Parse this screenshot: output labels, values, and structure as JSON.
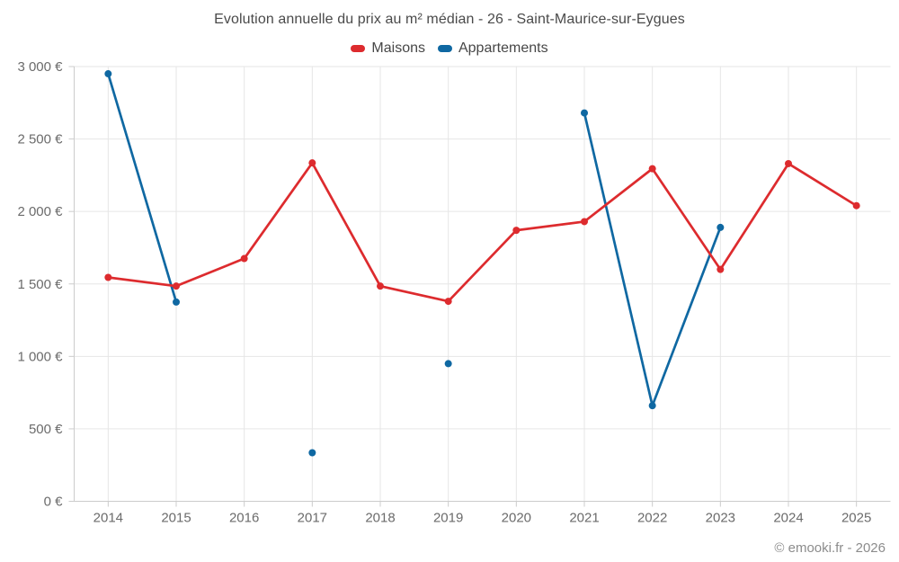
{
  "footer": {
    "text": "© emooki.fr - 2026"
  },
  "chart_data": {
    "type": "line",
    "title": "Evolution annuelle du prix au m² médian - 26 - Saint-Maurice-sur-Eygues",
    "categories": [
      "2014",
      "2015",
      "2016",
      "2017",
      "2018",
      "2019",
      "2020",
      "2021",
      "2022",
      "2023",
      "2024",
      "2025"
    ],
    "series": [
      {
        "name": "Appartements",
        "color": "#0f68a2",
        "values": [
          2950,
          1375,
          null,
          335,
          null,
          950,
          null,
          2680,
          660,
          1890,
          null,
          null
        ]
      },
      {
        "name": "Maisons",
        "color": "#dd2b2e",
        "values": [
          1545,
          1485,
          1675,
          2335,
          1485,
          1380,
          1870,
          1930,
          2295,
          1600,
          2330,
          2040
        ]
      }
    ],
    "legend_order": [
      "Maisons",
      "Appartements"
    ],
    "ylim": [
      0,
      3000
    ],
    "ytick_step": 500,
    "ytick_labels": [
      "0 €",
      "500 €",
      "1 000 €",
      "1 500 €",
      "2 000 €",
      "2 500 €",
      "3 000 €"
    ],
    "xlabel": "",
    "ylabel": "",
    "grid": true,
    "legend_position": "top",
    "currency": "€",
    "grid_color": "#e6e6e6",
    "axis_color": "#cccccc"
  }
}
